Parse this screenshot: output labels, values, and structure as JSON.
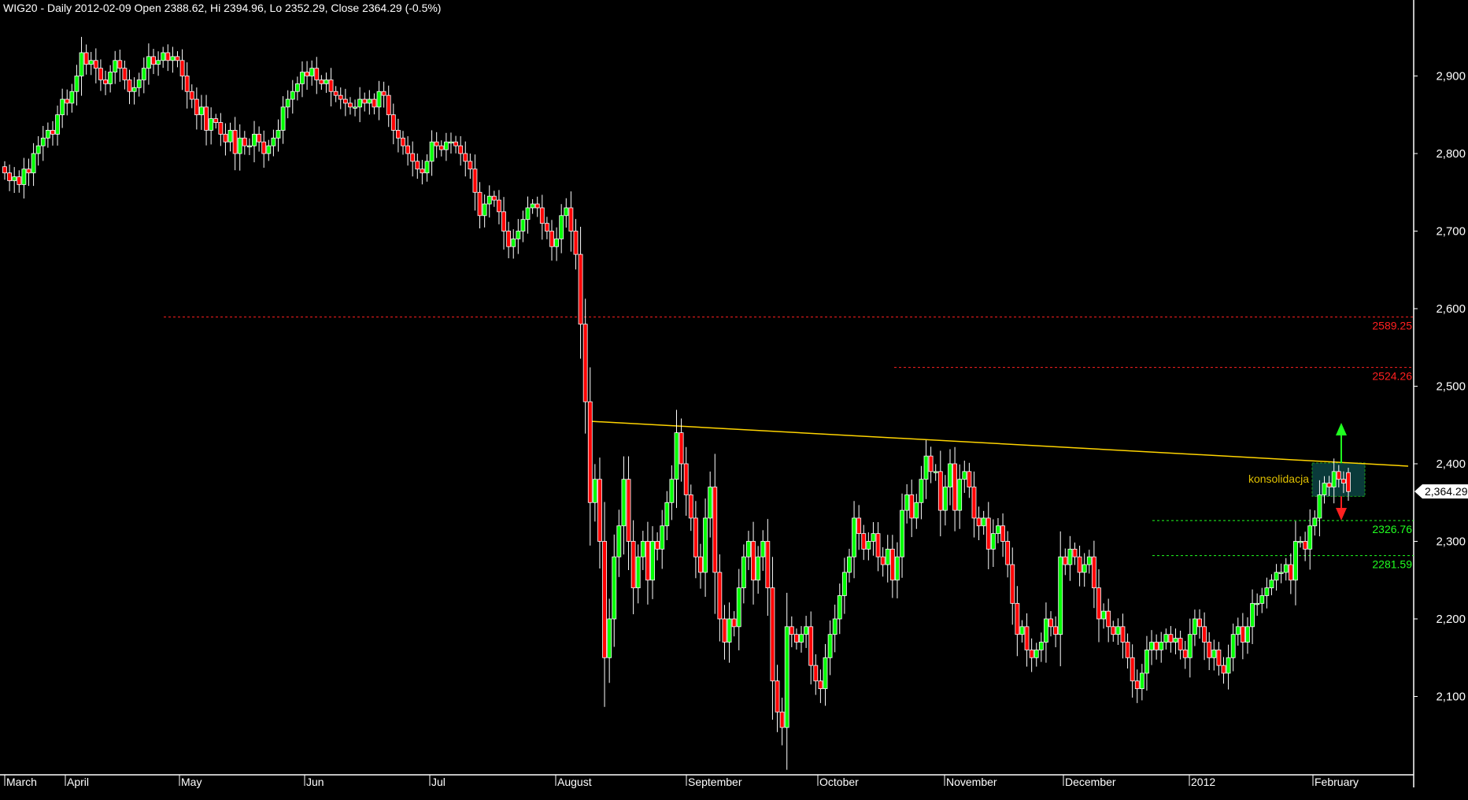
{
  "header": {
    "title": "WIG20 - Daily 2012-02-09 Open 2388.62, Hi 2394.96, Lo 2352.29, Close 2364.29 (-0.5%)"
  },
  "chart_data": {
    "type": "candlestick",
    "title": "WIG20 - Daily 2012-02-09 Open 2388.62, Hi 2394.96, Lo 2352.29, Close 2364.29 (-0.5%)",
    "ylim": [
      2020,
      2960
    ],
    "y_ticks": [
      "2,100",
      "2,200",
      "2,300",
      "2,400",
      "2,500",
      "2,600",
      "2,700",
      "2,800",
      "2,900"
    ],
    "y_tick_values": [
      2100,
      2200,
      2300,
      2400,
      2500,
      2600,
      2700,
      2800,
      2900
    ],
    "x_month_labels": [
      "March",
      "April",
      "May",
      "Jun",
      "Jul",
      "August",
      "September",
      "October",
      "November",
      "December",
      "2012",
      "February"
    ],
    "closes": [
      2775,
      2765,
      2770,
      2760,
      2780,
      2775,
      2800,
      2810,
      2820,
      2830,
      2825,
      2850,
      2870,
      2865,
      2880,
      2900,
      2930,
      2915,
      2920,
      2910,
      2895,
      2890,
      2905,
      2920,
      2910,
      2895,
      2880,
      2885,
      2895,
      2910,
      2925,
      2915,
      2920,
      2930,
      2920,
      2925,
      2920,
      2900,
      2880,
      2870,
      2850,
      2860,
      2830,
      2845,
      2840,
      2825,
      2815,
      2830,
      2800,
      2820,
      2810,
      2810,
      2825,
      2815,
      2800,
      2810,
      2820,
      2830,
      2860,
      2870,
      2880,
      2890,
      2905,
      2900,
      2910,
      2895,
      2890,
      2895,
      2880,
      2875,
      2870,
      2865,
      2860,
      2860,
      2870,
      2865,
      2870,
      2860,
      2880,
      2875,
      2850,
      2830,
      2820,
      2810,
      2800,
      2790,
      2780,
      2775,
      2790,
      2815,
      2810,
      2805,
      2815,
      2815,
      2810,
      2800,
      2790,
      2780,
      2750,
      2720,
      2735,
      2745,
      2740,
      2725,
      2700,
      2680,
      2690,
      2700,
      2715,
      2730,
      2735,
      2730,
      2710,
      2700,
      2680,
      2690,
      2720,
      2730,
      2700,
      2670,
      2580,
      2480,
      2350,
      2380,
      2300,
      2150,
      2200,
      2280,
      2320,
      2380,
      2300,
      2240,
      2280,
      2300,
      2250,
      2300,
      2290,
      2320,
      2350,
      2380,
      2440,
      2400,
      2360,
      2330,
      2280,
      2260,
      2330,
      2370,
      2260,
      2200,
      2170,
      2200,
      2190,
      2240,
      2280,
      2300,
      2250,
      2280,
      2300,
      2240,
      2120,
      2080,
      2060,
      2190,
      2180,
      2170,
      2180,
      2190,
      2140,
      2120,
      2110,
      2150,
      2180,
      2200,
      2230,
      2260,
      2280,
      2330,
      2310,
      2290,
      2300,
      2310,
      2280,
      2270,
      2290,
      2250,
      2280,
      2340,
      2360,
      2330,
      2350,
      2380,
      2410,
      2390,
      2390,
      2340,
      2370,
      2400,
      2340,
      2380,
      2390,
      2370,
      2330,
      2320,
      2330,
      2290,
      2310,
      2320,
      2300,
      2270,
      2220,
      2180,
      2190,
      2160,
      2150,
      2160,
      2170,
      2200,
      2190,
      2180,
      2280,
      2270,
      2290,
      2280,
      2260,
      2270,
      2280,
      2240,
      2200,
      2210,
      2190,
      2180,
      2190,
      2170,
      2150,
      2120,
      2110,
      2130,
      2160,
      2170,
      2160,
      2170,
      2180,
      2170,
      2175,
      2160,
      2150,
      2180,
      2200,
      2190,
      2170,
      2150,
      2160,
      2140,
      2130,
      2150,
      2180,
      2190,
      2170,
      2190,
      2220,
      2220,
      2230,
      2240,
      2250,
      2260,
      2260,
      2270,
      2250,
      2300,
      2300,
      2290,
      2320,
      2330,
      2360,
      2375,
      2370,
      2390,
      2380,
      2375,
      2388.62
    ],
    "last_candle": {
      "open": 2388.62,
      "high": 2394.96,
      "low": 2352.29,
      "close": 2364.29
    },
    "last_price_label": "2,364.29",
    "levels": [
      {
        "value": 2589.25,
        "label": "2589.25",
        "color": "#ff2020",
        "style": "dashed"
      },
      {
        "value": 2524.26,
        "label": "2524.26",
        "color": "#ff2020",
        "style": "dashed"
      },
      {
        "value": 2326.76,
        "label": "2326.76",
        "color": "#20ff20",
        "style": "dashed"
      },
      {
        "value": 2281.59,
        "label": "2281.59",
        "color": "#20ff20",
        "style": "dashed"
      }
    ],
    "trendline": {
      "from_price": 2455,
      "to_price": 2397,
      "color": "#ffd400"
    },
    "annotation": {
      "label": "konsolidacja",
      "color": "#e0c000",
      "box_price_top": 2401,
      "box_price_bottom": 2358
    },
    "colors": {
      "up": "#00ff00",
      "down": "#ff0000",
      "wick": "#ffffff",
      "background": "#000000",
      "box": "#0a3a3a"
    },
    "grid": false
  }
}
